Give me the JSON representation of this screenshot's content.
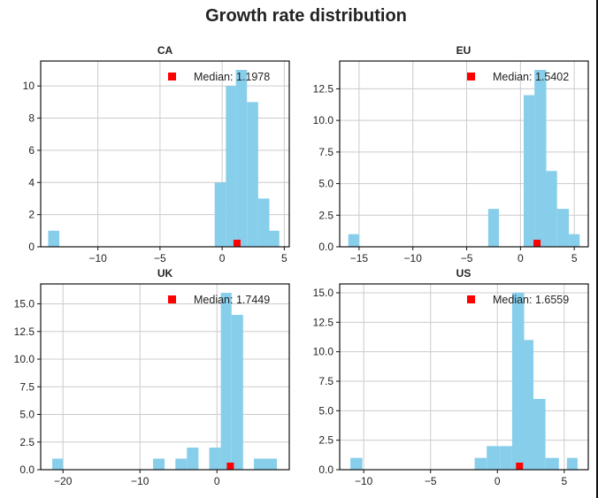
{
  "title": "Growth rate distribution",
  "colors": {
    "bar": "#87ceeb",
    "median_marker": "#ff0000",
    "grid": "#cccccc",
    "axes": "#111111"
  },
  "chart_data": [
    {
      "type": "bar",
      "title": "CA",
      "xlim": [
        -14.6,
        5.4
      ],
      "ylim": [
        0,
        11.55
      ],
      "xticks": [
        -10,
        -5,
        0,
        5
      ],
      "yticks": [
        0,
        2,
        4,
        6,
        8,
        10
      ],
      "bins": [
        {
          "x0": -14.0,
          "x1": -13.1,
          "value": 1
        },
        {
          "x0": -0.6,
          "x1": 0.3,
          "value": 4
        },
        {
          "x0": 0.3,
          "x1": 1.1,
          "value": 10
        },
        {
          "x0": 1.1,
          "x1": 2.0,
          "value": 11
        },
        {
          "x0": 2.0,
          "x1": 2.9,
          "value": 9
        },
        {
          "x0": 2.9,
          "x1": 3.8,
          "value": 3
        },
        {
          "x0": 3.8,
          "x1": 4.6,
          "value": 1
        }
      ],
      "median": 1.1978,
      "legend": "Median: 1.1978"
    },
    {
      "type": "bar",
      "title": "EU",
      "xlim": [
        -16.8,
        6.3
      ],
      "ylim": [
        0,
        14.7
      ],
      "xticks": [
        -15,
        -10,
        -5,
        0,
        5
      ],
      "yticks": [
        0,
        2.5,
        5.0,
        7.5,
        10.0,
        12.5
      ],
      "bins": [
        {
          "x0": -16.0,
          "x1": -15.0,
          "value": 1
        },
        {
          "x0": -3.0,
          "x1": -2.0,
          "value": 3
        },
        {
          "x0": 0.3,
          "x1": 1.3,
          "value": 12
        },
        {
          "x0": 1.3,
          "x1": 2.4,
          "value": 14
        },
        {
          "x0": 2.4,
          "x1": 3.4,
          "value": 6
        },
        {
          "x0": 3.4,
          "x1": 4.5,
          "value": 3
        },
        {
          "x0": 4.5,
          "x1": 5.5,
          "value": 1
        }
      ],
      "median": 1.5402,
      "legend": "Median: 1.5402"
    },
    {
      "type": "bar",
      "title": "UK",
      "xlim": [
        -22.9,
        9.4
      ],
      "ylim": [
        0,
        16.8
      ],
      "xticks": [
        -20,
        -10,
        0
      ],
      "yticks": [
        0,
        2.5,
        5.0,
        7.5,
        10.0,
        12.5,
        15.0
      ],
      "bins": [
        {
          "x0": -21.4,
          "x1": -20.0,
          "value": 1
        },
        {
          "x0": -8.3,
          "x1": -6.8,
          "value": 1
        },
        {
          "x0": -5.4,
          "x1": -3.9,
          "value": 1
        },
        {
          "x0": -3.9,
          "x1": -2.4,
          "value": 2
        },
        {
          "x0": -1.0,
          "x1": 0.5,
          "value": 2
        },
        {
          "x0": 0.5,
          "x1": 1.9,
          "value": 16
        },
        {
          "x0": 1.9,
          "x1": 3.4,
          "value": 14
        },
        {
          "x0": 4.8,
          "x1": 6.3,
          "value": 1
        },
        {
          "x0": 6.3,
          "x1": 7.8,
          "value": 1
        }
      ],
      "median": 1.7449,
      "legend": "Median: 1.7449"
    },
    {
      "type": "bar",
      "title": "US",
      "xlim": [
        -11.8,
        6.8
      ],
      "ylim": [
        0,
        15.75
      ],
      "xticks": [
        -10,
        -5,
        0,
        5
      ],
      "yticks": [
        0,
        2.5,
        5.0,
        7.5,
        10.0,
        12.5,
        15.0
      ],
      "bins": [
        {
          "x0": -11.0,
          "x1": -10.1,
          "value": 1
        },
        {
          "x0": -1.7,
          "x1": -0.8,
          "value": 1
        },
        {
          "x0": -0.8,
          "x1": 0.2,
          "value": 2
        },
        {
          "x0": 0.2,
          "x1": 1.1,
          "value": 2
        },
        {
          "x0": 1.1,
          "x1": 2.0,
          "value": 15
        },
        {
          "x0": 2.0,
          "x1": 2.7,
          "value": 11
        },
        {
          "x0": 2.7,
          "x1": 3.6,
          "value": 6
        },
        {
          "x0": 3.6,
          "x1": 4.6,
          "value": 1
        },
        {
          "x0": 5.2,
          "x1": 6.0,
          "value": 1
        }
      ],
      "median": 1.6559,
      "legend": "Median: 1.6559"
    }
  ]
}
